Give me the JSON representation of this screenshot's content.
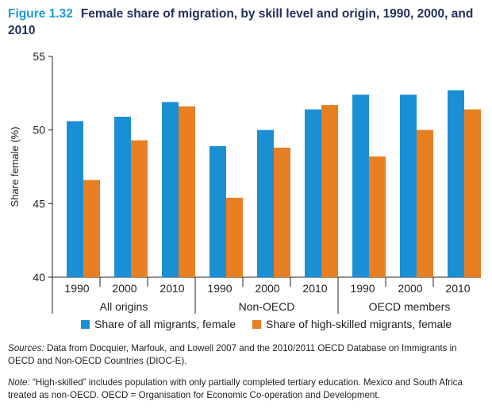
{
  "figure": {
    "number": "Figure 1.32",
    "title": "Female share of migration, by skill level and origin, 1990, 2000, and 2010"
  },
  "chart_data": {
    "type": "bar",
    "ylabel": "Share female (%)",
    "ylim": [
      40,
      55
    ],
    "yticks": [
      40,
      45,
      50,
      55
    ],
    "groups": [
      "All origins",
      "Non-OECD",
      "OECD members"
    ],
    "years": [
      "1990",
      "2000",
      "2010"
    ],
    "series": [
      {
        "name": "Share of all migrants, female",
        "color": "#1b8fd3",
        "values": [
          [
            50.6,
            50.9,
            51.9
          ],
          [
            48.9,
            50.0,
            51.4
          ],
          [
            52.4,
            52.4,
            52.7
          ]
        ]
      },
      {
        "name": "Share of high-skilled migrants, female",
        "color": "#e87f22",
        "values": [
          [
            46.6,
            49.3,
            51.6
          ],
          [
            45.4,
            48.8,
            51.7
          ],
          [
            48.2,
            50.0,
            51.4
          ]
        ]
      }
    ],
    "legend": "bottom"
  },
  "footer": {
    "sources_label": "Sources:",
    "sources_text": " Data from Docquier, Marfouk, and Lowell 2007 and the 2010/2011 OECD Database on Immigrants in OECD and Non-OECD Countries (DIOC-E).",
    "note_label": "Note:",
    "note_text": " “High-skilled” includes population with only partially completed tertiary education. Mexico and South Africa treated as non-OECD. OECD = Organisation for Economic Co-operation and Development."
  }
}
